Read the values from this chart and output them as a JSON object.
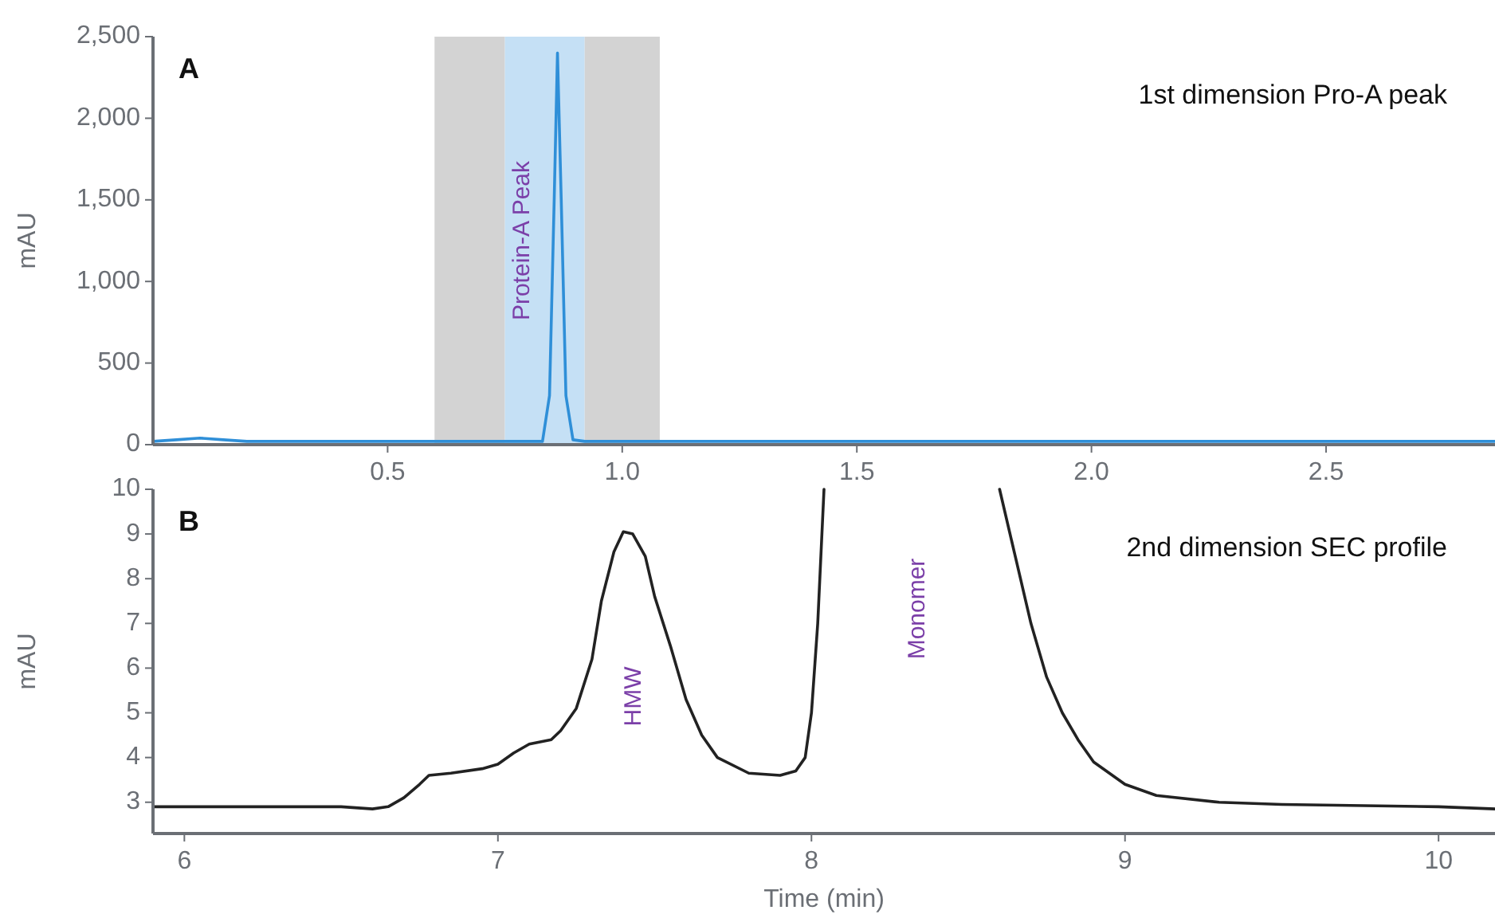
{
  "chart_data": [
    {
      "type": "line",
      "ylabel": "mAU",
      "xlim": [
        0,
        2.86
      ],
      "xticks": [
        0.5,
        {
          "value": 1,
          "label": "1.0"
        },
        1.5,
        {
          "value": 2,
          "label": "2.0"
        },
        2.5
      ],
      "ylim": [
        0,
        2500
      ],
      "yticks": [
        0,
        500,
        {
          "value": 1000,
          "label": "1,000"
        },
        {
          "value": 1500,
          "label": "1,500"
        },
        {
          "value": 2000,
          "label": "2,000"
        },
        {
          "value": 2500,
          "label": "2,500"
        }
      ],
      "grid": false,
      "marker": "none",
      "line_style": "solid",
      "bands": [
        {
          "axis": "x",
          "from": 0.6,
          "to": 0.75,
          "color": "#d3d3d3"
        },
        {
          "axis": "x",
          "from": 0.75,
          "to": 0.92,
          "color": "#c5e0f5",
          "label": "Protein-A Peak"
        },
        {
          "axis": "x",
          "from": 0.92,
          "to": 1.08,
          "color": "#d3d3d3"
        }
      ],
      "annotations": [
        "A",
        "1st dimension Pro-A peak"
      ],
      "series": [
        {
          "color": "#2f8fd8",
          "x": [
            0,
            0.05,
            0.1,
            0.15,
            0.2,
            0.3,
            0.8,
            0.83,
            0.845,
            0.855,
            0.862,
            0.87,
            0.88,
            0.895,
            0.92,
            1.2,
            2.86
          ],
          "values": [
            20,
            30,
            40,
            30,
            20,
            20,
            20,
            20,
            300,
            1500,
            2400,
            1500,
            300,
            30,
            20,
            20,
            20
          ]
        }
      ]
    },
    {
      "type": "line",
      "xlabel": "Time (min)",
      "ylabel": "mAU",
      "xlim": [
        5.9,
        10.18
      ],
      "xticks": [
        6,
        7,
        8,
        9,
        10
      ],
      "ylim": [
        2.3,
        10
      ],
      "yticks": [
        3,
        4,
        5,
        6,
        7,
        8,
        9,
        10
      ],
      "grid": false,
      "marker": "none",
      "line_style": "solid",
      "annotations": [
        "B",
        "2nd dimension SEC profile",
        "HMW",
        "Monomer"
      ],
      "series": [
        {
          "color": "#222222",
          "x": [
            5.9,
            6.2,
            6.5,
            6.6,
            6.65,
            6.7,
            6.75,
            6.78,
            6.85,
            6.95,
            7.0,
            7.05,
            7.1,
            7.17,
            7.2,
            7.25,
            7.3,
            7.33,
            7.37,
            7.4,
            7.43,
            7.47,
            7.5,
            7.55,
            7.6,
            7.65,
            7.7,
            7.8,
            7.9,
            7.95,
            7.98,
            8.0,
            8.02,
            8.04
          ],
          "values": [
            2.9,
            2.9,
            2.9,
            2.85,
            2.9,
            3.1,
            3.4,
            3.6,
            3.65,
            3.75,
            3.85,
            4.1,
            4.3,
            4.4,
            4.6,
            5.1,
            6.2,
            7.5,
            8.6,
            9.05,
            9.0,
            8.5,
            7.6,
            6.5,
            5.3,
            4.5,
            4.0,
            3.65,
            3.6,
            3.7,
            4.0,
            5,
            7,
            10
          ]
        },
        {
          "color": "#222222",
          "x": [
            8.6,
            8.65,
            8.7,
            8.75,
            8.8,
            8.85,
            8.9,
            9.0,
            9.1,
            9.3,
            9.5,
            10.0,
            10.18
          ],
          "values": [
            10,
            8.5,
            7,
            5.8,
            5,
            4.4,
            3.9,
            3.4,
            3.15,
            3.0,
            2.95,
            2.9,
            2.85
          ]
        }
      ]
    }
  ]
}
